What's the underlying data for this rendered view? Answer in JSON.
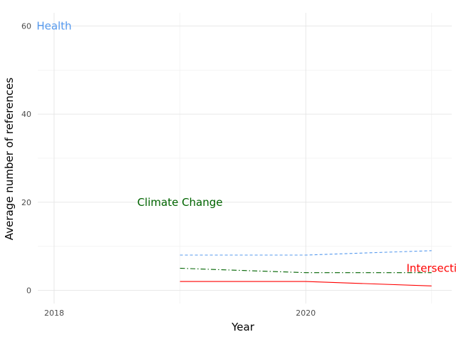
{
  "chart_data": {
    "type": "line",
    "xlabel": "Year",
    "ylabel": "Average number of references",
    "xlim": [
      2017.87,
      2021.16
    ],
    "ylim": [
      -3.0,
      63.0
    ],
    "x_ticks": [
      2018,
      2020
    ],
    "y_ticks": [
      0,
      20,
      40,
      60
    ],
    "grid": true,
    "series": [
      {
        "name": "Health",
        "color": "#5599ee",
        "dash": "dashed",
        "x": [
          2019,
          2020,
          2021
        ],
        "values": [
          8,
          8,
          9
        ]
      },
      {
        "name": "Climate Change",
        "color": "#006400",
        "dash": "dashdot",
        "x": [
          2019,
          2020,
          2021
        ],
        "values": [
          5,
          4,
          4
        ]
      },
      {
        "name": "Intersecti",
        "color": "#ff0000",
        "dash": "solid",
        "x": [
          2019,
          2020,
          2021
        ],
        "values": [
          2,
          2,
          1
        ]
      }
    ],
    "annotations": [
      {
        "text": "Health",
        "x": 2018,
        "y": 60,
        "color": "#5599ee"
      },
      {
        "text": "Climate Change",
        "x": 2019,
        "y": 20,
        "color": "#006400"
      },
      {
        "text": "Intersecti",
        "x": 2021,
        "y": 5,
        "color": "#ff0000"
      }
    ]
  }
}
